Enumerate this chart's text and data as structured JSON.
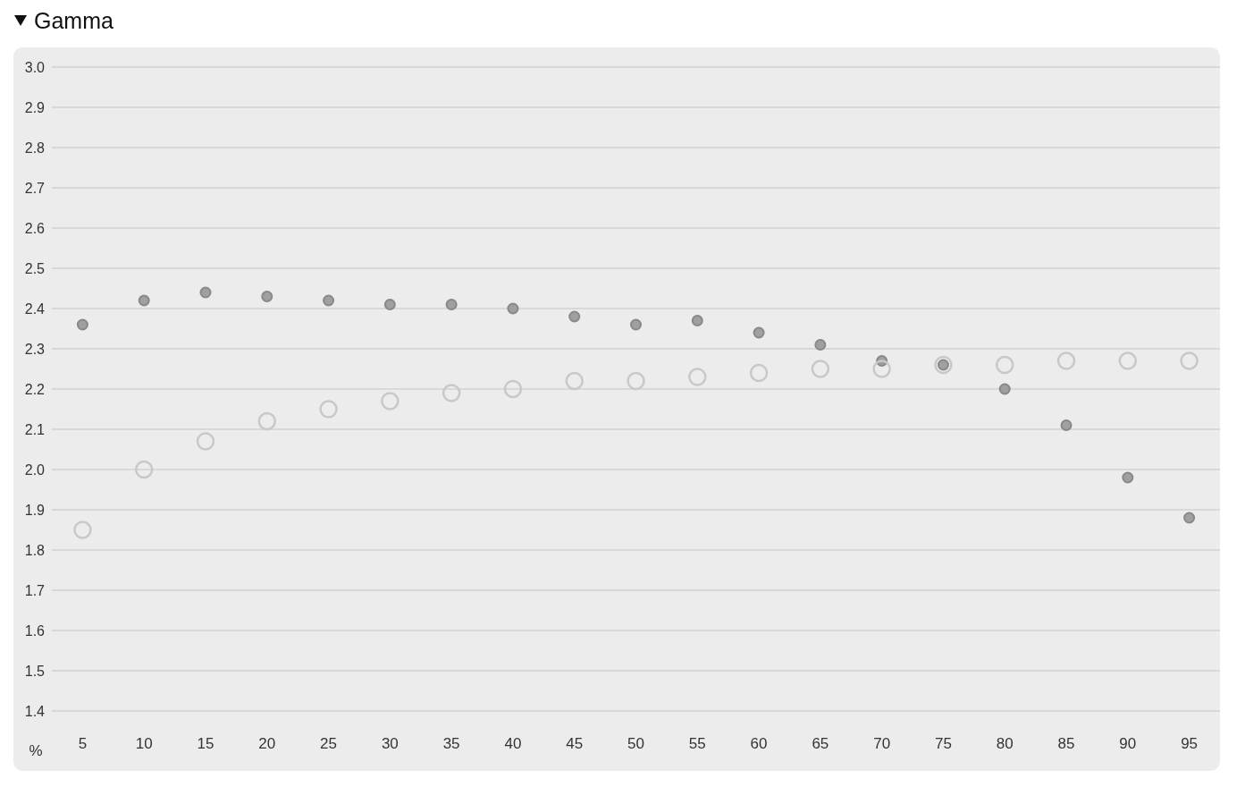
{
  "chart_data": {
    "type": "scatter",
    "title": "Gamma",
    "xlabel": "%",
    "categories": [
      "5",
      "10",
      "15",
      "20",
      "25",
      "30",
      "35",
      "40",
      "45",
      "50",
      "55",
      "60",
      "65",
      "70",
      "75",
      "80",
      "85",
      "90",
      "95"
    ],
    "series": [
      {
        "color": "#a0a0a0",
        "values": [
          2.36,
          2.42,
          2.44,
          2.43,
          2.42,
          2.41,
          2.41,
          2.4,
          2.38,
          2.36,
          2.37,
          2.34,
          2.31,
          2.27,
          2.26,
          2.2,
          2.11,
          1.98,
          1.88
        ]
      },
      {
        "color": "#c8c8c8",
        "values": [
          1.85,
          2.0,
          2.07,
          2.12,
          2.15,
          2.17,
          2.19,
          2.2,
          2.22,
          2.22,
          2.23,
          2.24,
          2.25,
          2.25,
          2.26,
          2.26,
          2.27,
          2.27,
          2.27
        ]
      }
    ],
    "ylim": [
      1.4,
      3.0
    ],
    "yticks": [
      1.4,
      1.5,
      1.6,
      1.7,
      1.8,
      1.9,
      {
        "value": 2,
        "label": "2.0"
      },
      2.1,
      2.2,
      2.3,
      2.4,
      2.5,
      2.6,
      2.7,
      2.8,
      2.9,
      {
        "value": 3,
        "label": "3.0"
      }
    ],
    "grid": "y",
    "legend": false,
    "marker": "circle"
  }
}
